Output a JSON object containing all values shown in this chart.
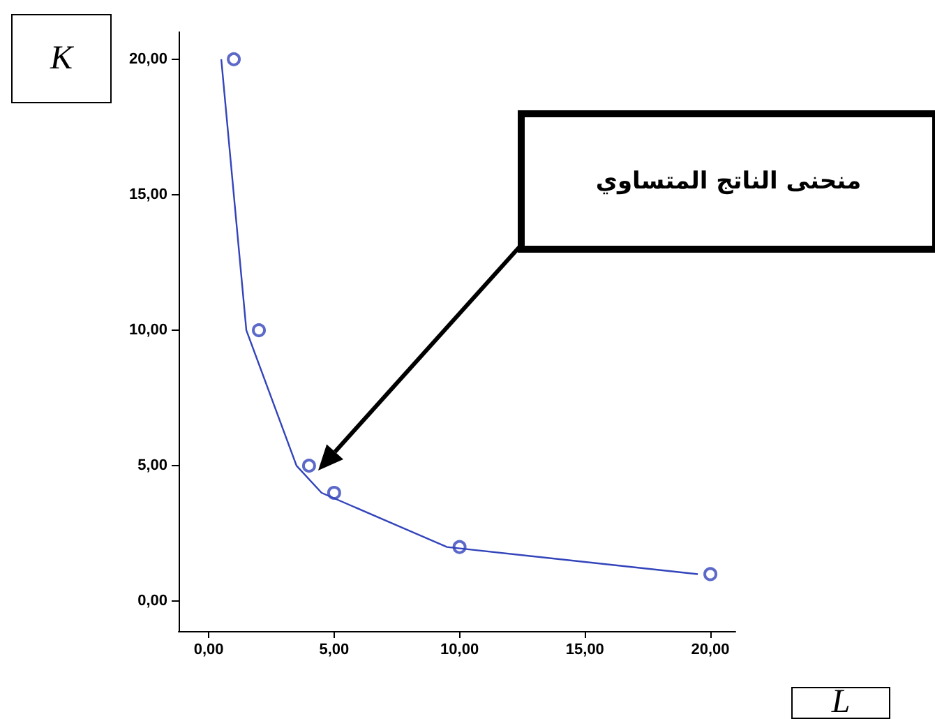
{
  "chart_data": {
    "type": "scatter",
    "xlabel": "L",
    "ylabel": "K",
    "annotations": [
      "منحنى الناتج المتساوي"
    ],
    "series": [
      {
        "color": "#3344bb",
        "marker": "circle",
        "x": [
          1,
          2,
          4,
          5,
          10,
          20
        ],
        "values": [
          20,
          10,
          5,
          4,
          2,
          1
        ]
      },
      {
        "type": "line",
        "color": "#3344bb",
        "marker": "none",
        "x": [
          0.5,
          1.5,
          3.5,
          4.5,
          9.5,
          19.5
        ],
        "values": [
          20,
          10,
          5,
          4,
          2,
          1
        ]
      }
    ],
    "xlim": [
      -1.2,
      21
    ],
    "ylim": [
      -1.1,
      21
    ],
    "xticks": [
      {
        "value": 0,
        "label": "0,00"
      },
      {
        "value": 5,
        "label": "5,00"
      },
      {
        "value": 10,
        "label": "10,00"
      },
      {
        "value": 15,
        "label": "15,00"
      },
      {
        "value": 20,
        "label": "20,00"
      }
    ],
    "yticks": [
      {
        "value": 0,
        "label": "0,00"
      },
      {
        "value": 5,
        "label": "5,00"
      },
      {
        "value": 10,
        "label": "10,00"
      },
      {
        "value": 15,
        "label": "15,00"
      },
      {
        "value": 20,
        "label": "20,00"
      }
    ],
    "grid": false
  }
}
